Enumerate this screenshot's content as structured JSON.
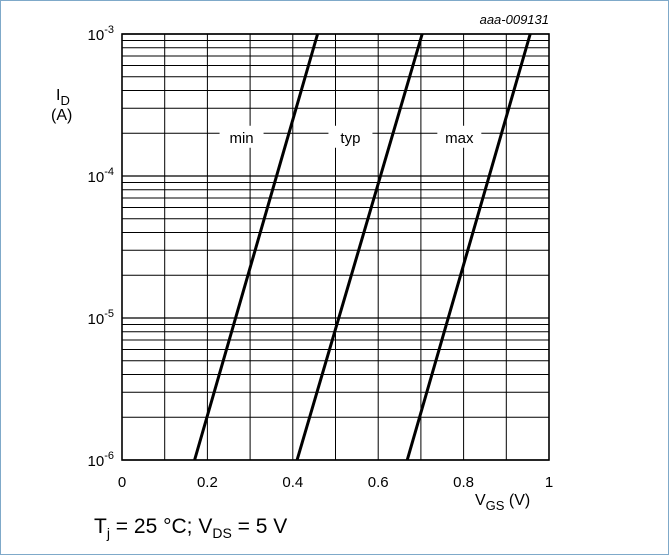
{
  "chart_data": {
    "type": "line",
    "figure_id": "aaa-009131",
    "ylabel": "I_D",
    "ylabel_unit": "(A)",
    "xlabel": "V_GS (V)",
    "xlim": [
      0,
      1
    ],
    "ylim": [
      1e-06,
      0.001
    ],
    "y_scale": "log",
    "grid": true,
    "x_ticks": [
      {
        "value": 0,
        "label": "0"
      },
      {
        "value": 0.2,
        "label": "0.2"
      },
      {
        "value": 0.4,
        "label": "0.4"
      },
      {
        "value": 0.6,
        "label": "0.6"
      },
      {
        "value": 0.8,
        "label": "0.8"
      },
      {
        "value": 1,
        "label": "1"
      }
    ],
    "y_ticks": [
      {
        "value": 1e-06,
        "base": "10",
        "exp": "-6"
      },
      {
        "value": 1e-05,
        "base": "10",
        "exp": "-5"
      },
      {
        "value": 0.0001,
        "base": "10",
        "exp": "-4"
      },
      {
        "value": 0.001,
        "base": "10",
        "exp": "-3"
      }
    ],
    "series": [
      {
        "name": "min",
        "x": [
          0.17,
          0.458
        ],
        "y": [
          1e-06,
          0.001
        ]
      },
      {
        "name": "typ",
        "x": [
          0.41,
          0.703
        ],
        "y": [
          1e-06,
          0.001
        ]
      },
      {
        "name": "max",
        "x": [
          0.668,
          0.956
        ],
        "y": [
          1e-06,
          0.001
        ]
      }
    ],
    "annotations": [
      {
        "text": "min",
        "x": 0.28,
        "y": 0.00018
      },
      {
        "text": "typ",
        "x": 0.535,
        "y": 0.00018
      },
      {
        "text": "max",
        "x": 0.79,
        "y": 0.00018
      }
    ]
  },
  "conditions": {
    "t_symbol": "T",
    "t_sub": "j",
    "t_text": " = 25 °C; ",
    "v_symbol": "V",
    "v_sub": "DS",
    "v_text": " = 5 V"
  },
  "colors": {
    "frame": "#7fa9c9",
    "grid": "#000000",
    "curve": "#000000"
  }
}
